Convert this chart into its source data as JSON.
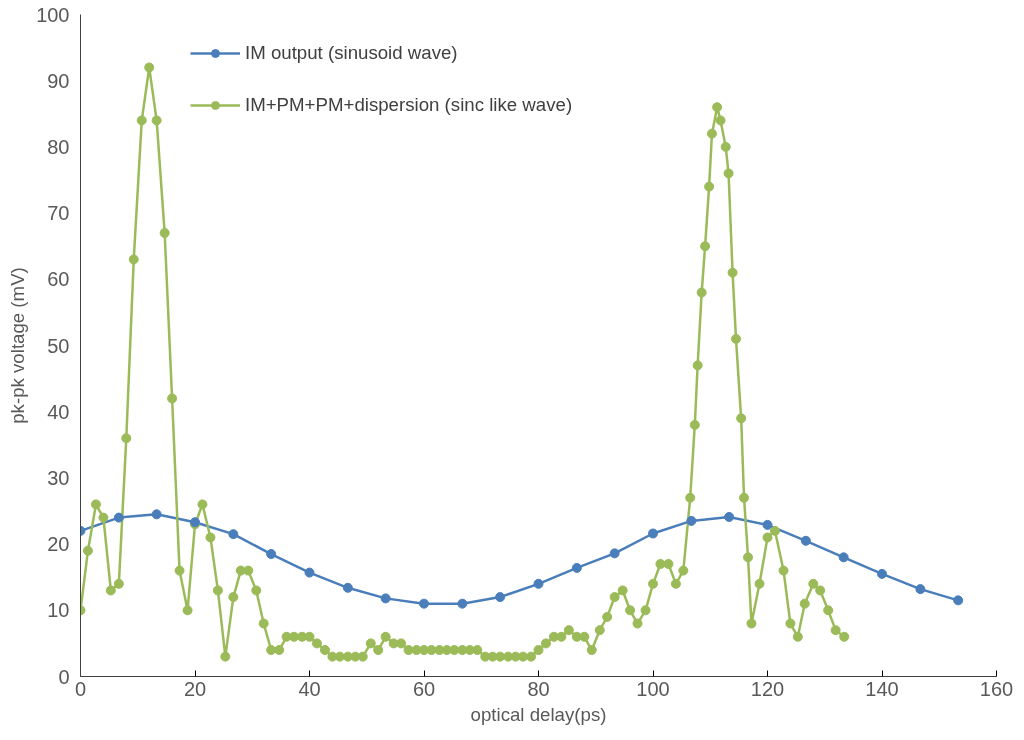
{
  "chart_data": {
    "type": "line",
    "xlabel": "optical delay(ps)",
    "ylabel": "pk-pk voltage (mV)",
    "xlim": [
      0,
      160
    ],
    "xticks": [
      0,
      20,
      40,
      60,
      80,
      100,
      120,
      140,
      160
    ],
    "ylim": [
      0,
      100
    ],
    "yticks": [
      0,
      10,
      20,
      30,
      40,
      50,
      60,
      70,
      80,
      90,
      100
    ],
    "grid": false,
    "legend": "top",
    "marker": "circle",
    "line_style": "solid",
    "series": [
      {
        "name": "IM output (sinusoid wave)",
        "color": "#4a7ebb",
        "x": [
          0,
          6.7,
          13.3,
          20,
          26.7,
          33.3,
          40,
          46.7,
          53.3,
          60,
          66.7,
          73.3,
          80,
          86.7,
          93.3,
          100,
          106.7,
          113.3,
          120,
          126.7,
          133.3,
          140,
          146.7,
          153.3
        ],
        "values": [
          22,
          24,
          24.5,
          23.3,
          21.5,
          18.5,
          15.7,
          13.4,
          11.8,
          11,
          11,
          12,
          14,
          16.4,
          18.6,
          21.6,
          23.5,
          24.1,
          22.9,
          20.5,
          18,
          15.5,
          13.2,
          11.5
        ]
      },
      {
        "name": "IM+PM+PM+dispersion (sinc like wave)",
        "color": "#9bbb59",
        "x": [
          0,
          1.3,
          2.7,
          4,
          5.3,
          6.7,
          8,
          9.3,
          10.7,
          12,
          13.3,
          14.7,
          16,
          17.3,
          18.7,
          20,
          21.3,
          22.7,
          24,
          25.3,
          26.7,
          28,
          29.3,
          30.7,
          32,
          33.3,
          34.7,
          36,
          37.3,
          38.7,
          40,
          41.3,
          42.7,
          44,
          45.3,
          46.7,
          48,
          49.3,
          50.7,
          52,
          53.3,
          54.7,
          56,
          57.3,
          58.7,
          60,
          61.3,
          62.7,
          64,
          65.3,
          66.7,
          68,
          69.3,
          70.7,
          72,
          73.3,
          74.7,
          76,
          77.3,
          78.7,
          80,
          81.3,
          82.7,
          84,
          85.3,
          86.7,
          88,
          89.3,
          90.7,
          92,
          93.3,
          94.7,
          96,
          97.3,
          98.7,
          100,
          101.3,
          102.7,
          104,
          105.3,
          106.5,
          107.3,
          107.8,
          108.5,
          109.1,
          109.8,
          110.3,
          111.2,
          111.8,
          112.7,
          113.2,
          113.9,
          114.5,
          115.4,
          115.9,
          116.6,
          117.2,
          118.6,
          120,
          121.3,
          122.8,
          124,
          125.3,
          126.5,
          128,
          129.2,
          130.6,
          131.9,
          133.4
        ],
        "values": [
          10,
          19,
          26,
          24,
          13,
          14,
          36,
          63,
          84,
          92,
          84,
          67,
          42,
          16,
          10,
          23,
          26,
          21,
          13,
          3,
          12,
          16,
          16,
          13,
          8,
          4,
          4,
          6,
          6,
          6,
          6,
          5,
          4,
          3,
          3,
          3,
          3,
          3,
          5,
          4,
          6,
          5,
          5,
          4,
          4,
          4,
          4,
          4,
          4,
          4,
          4,
          4,
          4,
          3,
          3,
          3,
          3,
          3,
          3,
          3,
          4,
          5,
          6,
          6,
          7,
          6,
          6,
          4,
          7,
          9,
          12,
          13,
          10,
          8,
          10,
          14,
          17,
          17,
          14,
          16,
          27,
          38,
          47,
          58,
          65,
          74,
          82,
          86,
          84,
          80,
          76,
          61,
          51,
          39,
          27,
          18,
          8,
          14,
          21,
          22,
          16,
          8,
          6,
          11,
          14,
          13,
          10,
          7,
          6
        ]
      }
    ]
  }
}
